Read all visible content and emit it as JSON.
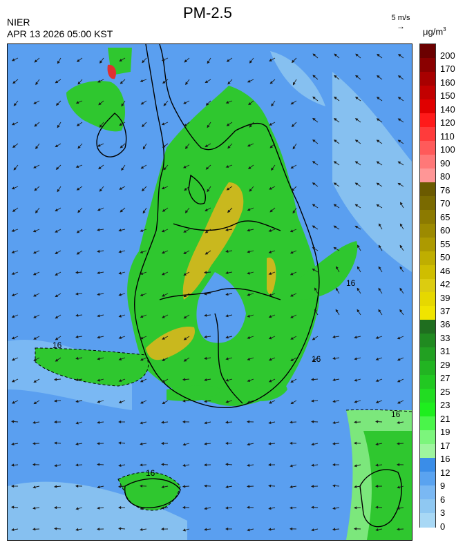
{
  "header": {
    "title": "PM-2.5",
    "agency": "NIER",
    "timestamp": "APR 13 2026 05:00 KST"
  },
  "wind_reference": {
    "label": "5 m/s",
    "arrow_glyph": "→"
  },
  "units": {
    "base": "μg/m",
    "exponent": "3"
  },
  "colorbar": {
    "labels": [
      "200",
      "170",
      "160",
      "150",
      "140",
      "120",
      "110",
      "100",
      "90",
      "80",
      "76",
      "70",
      "65",
      "60",
      "55",
      "50",
      "46",
      "42",
      "39",
      "37",
      "36",
      "33",
      "31",
      "29",
      "27",
      "25",
      "23",
      "21",
      "19",
      "17",
      "16",
      "12",
      "9",
      "6",
      "3",
      "0"
    ],
    "colors": [
      "#6b0000",
      "#8a0000",
      "#a80000",
      "#c20000",
      "#e00000",
      "#ff1a1a",
      "#ff3b3b",
      "#ff5a5a",
      "#ff7878",
      "#ff9696",
      "#6b5a00",
      "#7a6a00",
      "#8c7a00",
      "#9c8a00",
      "#ad9a00",
      "#bfae00",
      "#cfbe00",
      "#dccc10",
      "#e6d800",
      "#f0e400",
      "#1f6e1f",
      "#208a20",
      "#22a022",
      "#22b422",
      "#22c822",
      "#22dc22",
      "#1eee1e",
      "#4af54a",
      "#7cf57c",
      "#9ef59e",
      "#3a8de8",
      "#5aa3f0",
      "#7ab8f3",
      "#8fc8f2",
      "#a8d8f5"
    ]
  },
  "map": {
    "contour_labels": [
      "16",
      "16",
      "16",
      "16",
      "16"
    ],
    "colors": {
      "background": "#5a9ff0",
      "sea_light": "#86c0f0",
      "land_green": "#2fc72f",
      "land_lightgreen": "#7ce77c",
      "land_darkgreen": "#1ea71e",
      "yellow": "#c9b81e",
      "red": "#e03030"
    }
  }
}
